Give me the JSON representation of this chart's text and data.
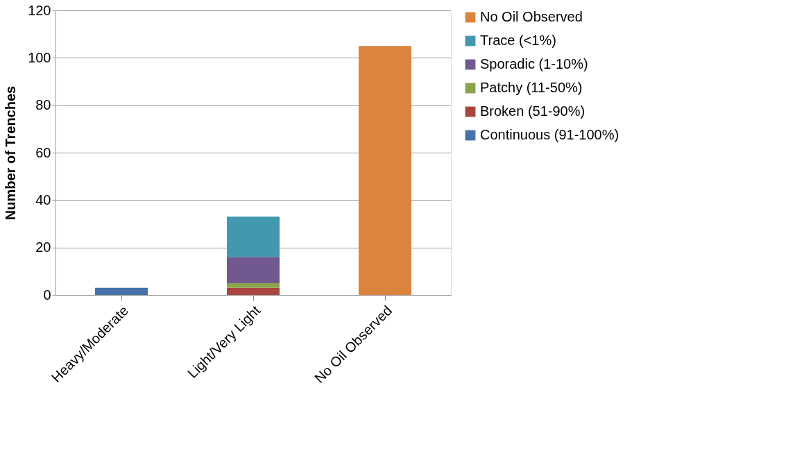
{
  "chart_data": {
    "type": "bar",
    "stacked": true,
    "ylabel": "Number of Trenches",
    "categories": [
      "Heavy/Moderate",
      "Light/Very Light",
      "No Oil Observed"
    ],
    "series": [
      {
        "name": "Continuous (91-100%)",
        "color": "#4672a8",
        "values": [
          3,
          null,
          null
        ]
      },
      {
        "name": "Broken (51-90%)",
        "color": "#a9463f",
        "values": [
          null,
          3,
          null
        ]
      },
      {
        "name": "Patchy (11-50%)",
        "color": "#89a44c",
        "values": [
          null,
          2,
          null
        ]
      },
      {
        "name": "Sporadic (1-10%)",
        "color": "#71588f",
        "values": [
          null,
          11,
          null
        ]
      },
      {
        "name": "Trace (<1%)",
        "color": "#4198af",
        "values": [
          null,
          17,
          null
        ]
      },
      {
        "name": "No Oil Observed",
        "color": "#db843d",
        "values": [
          null,
          null,
          105
        ]
      }
    ],
    "ylim": [
      0,
      120
    ],
    "yticks": [
      0,
      20,
      40,
      60,
      80,
      100,
      120
    ],
    "grid": "y",
    "legend": "right"
  }
}
